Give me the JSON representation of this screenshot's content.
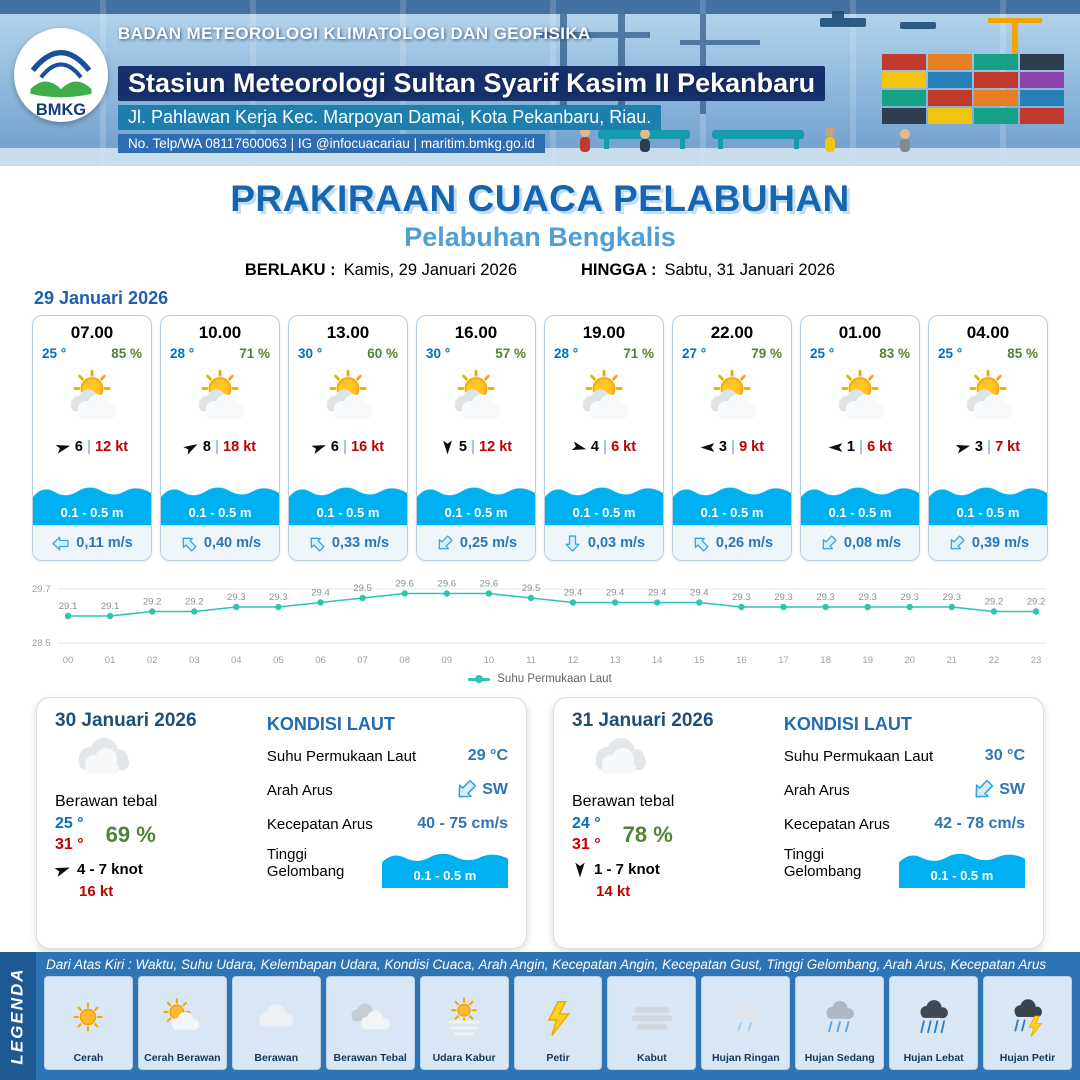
{
  "ui": {
    "sep": "|"
  },
  "palette": {
    "accent_blue": "#1565b0",
    "subtitle_blue": "#4d9fd6",
    "wave_blue": "#00b0f0",
    "temp_blue": "#0070c0",
    "humidity_green": "#538135",
    "gust_red": "#c00000",
    "sst_teal": "#2cc5b2",
    "header_navy": "#15306b",
    "legend_bg": "#2e75b6"
  },
  "header": {
    "logo_text": "BMKG",
    "agency": "BADAN METEOROLOGI KLIMATOLOGI DAN GEOFISIKA",
    "station": "Stasiun Meteorologi Sultan Syarif Kasim II Pekanbaru",
    "address": "Jl. Pahlawan Kerja Kec. Marpoyan Damai, Kota Pekanbaru, Riau.",
    "contact": "No. Telp/WA 08117600063 | IG @infocuacariau | maritim.bmkg.go.id"
  },
  "title": {
    "main": "PRAKIRAAN CUACA PELABUHAN",
    "sub": "Pelabuhan Bengkalis",
    "valid_label": "BERLAKU :",
    "valid_value": "Kamis, 29 Januari 2026",
    "until_label": "HINGGA :",
    "until_value": "Sabtu, 31 Januari 2026"
  },
  "section_date": "29 Januari 2026",
  "hourly": [
    {
      "time": "07.00",
      "temp": "25 °",
      "rh": "85 %",
      "wind": "6",
      "gust": "12 kt",
      "wind_deg": 345,
      "wave": "0.1 - 0.5 m",
      "current": "0,11 m/s",
      "current_deg": 270
    },
    {
      "time": "10.00",
      "temp": "28 °",
      "rh": "71 %",
      "wind": "8",
      "gust": "18 kt",
      "wind_deg": 330,
      "wave": "0.1 - 0.5 m",
      "current": "0,40 m/s",
      "current_deg": 315
    },
    {
      "time": "13.00",
      "temp": "30 °",
      "rh": "60 %",
      "wind": "6",
      "gust": "16 kt",
      "wind_deg": 340,
      "wave": "0.1 - 0.5 m",
      "current": "0,33 m/s",
      "current_deg": 315
    },
    {
      "time": "16.00",
      "temp": "30 °",
      "rh": "57 %",
      "wind": "5",
      "gust": "12 kt",
      "wind_deg": 90,
      "wave": "0.1 - 0.5 m",
      "current": "0,25 m/s",
      "current_deg": 225
    },
    {
      "time": "19.00",
      "temp": "28 °",
      "rh": "71 %",
      "wind": "4",
      "gust": "6 kt",
      "wind_deg": 15,
      "wave": "0.1 - 0.5 m",
      "current": "0,03 m/s",
      "current_deg": 180
    },
    {
      "time": "22.00",
      "temp": "27 °",
      "rh": "79 %",
      "wind": "3",
      "gust": "9 kt",
      "wind_deg": 180,
      "wave": "0.1 - 0.5 m",
      "current": "0,26 m/s",
      "current_deg": 315
    },
    {
      "time": "01.00",
      "temp": "25 °",
      "rh": "83 %",
      "wind": "1",
      "gust": "6 kt",
      "wind_deg": 180,
      "wave": "0.1 - 0.5 m",
      "current": "0,08 m/s",
      "current_deg": 225
    },
    {
      "time": "04.00",
      "temp": "25 °",
      "rh": "85 %",
      "wind": "3",
      "gust": "7 kt",
      "wind_deg": 345,
      "wave": "0.1 - 0.5 m",
      "current": "0,39 m/s",
      "current_deg": 225
    }
  ],
  "chart_data": {
    "type": "line",
    "title": "",
    "series_name": "Suhu Permukaan Laut",
    "x": [
      "00",
      "01",
      "02",
      "03",
      "04",
      "05",
      "06",
      "07",
      "08",
      "09",
      "10",
      "11",
      "12",
      "13",
      "14",
      "15",
      "16",
      "17",
      "18",
      "19",
      "20",
      "21",
      "22",
      "23"
    ],
    "values": [
      29.1,
      29.1,
      29.2,
      29.2,
      29.3,
      29.3,
      29.4,
      29.5,
      29.6,
      29.6,
      29.6,
      29.5,
      29.4,
      29.4,
      29.4,
      29.4,
      29.3,
      29.3,
      29.3,
      29.3,
      29.3,
      29.3,
      29.2,
      29.2
    ],
    "ylim": [
      28.5,
      29.7
    ],
    "line_color": "#2cc5b2",
    "grid": true,
    "legend_position": "bottom"
  },
  "sea_labels": {
    "heading": "KONDISI LAUT",
    "sst": "Suhu Permukaan Laut",
    "arah": "Arah Arus",
    "kecepatan": "Kecepatan Arus",
    "gelombang": "Tinggi Gelombang"
  },
  "daily": [
    {
      "date": "30 Januari 2026",
      "condition": "Berawan tebal",
      "tmin": "25 °",
      "tmax": "31 °",
      "rh": "69 %",
      "wind": "4  - 7 knot",
      "gust": "16 kt",
      "wind_deg": 340,
      "sst": "29 °C",
      "current_dir": "SW",
      "current_deg": 225,
      "current_speed": "40  - 75 cm/s",
      "wave": "0.1 - 0.5 m"
    },
    {
      "date": "31 Januari 2026",
      "condition": "Berawan tebal",
      "tmin": "24 °",
      "tmax": "31 °",
      "rh": "78 %",
      "wind": "1  - 7 knot",
      "gust": "14 kt",
      "wind_deg": 90,
      "sst": "30 °C",
      "current_dir": "SW",
      "current_deg": 225,
      "current_speed": "42  - 78 cm/s",
      "wave": "0.1 - 0.5 m"
    }
  ],
  "legend": {
    "title": "LEGENDA",
    "note": "Dari Atas Kiri : Waktu, Suhu Udara, Kelembapan Udara, Kondisi Cuaca, Arah Angin, Kecepatan Angin, Kecepatan Gust, Tinggi Gelombang, Arah Arus, Kecepatan Arus",
    "items": [
      {
        "label": "Cerah",
        "icon": "sun"
      },
      {
        "label": "Cerah Berawan",
        "icon": "sun-cloud"
      },
      {
        "label": "Berawan",
        "icon": "cloud"
      },
      {
        "label": "Berawan Tebal",
        "icon": "clouds"
      },
      {
        "label": "Udara Kabur",
        "icon": "haze"
      },
      {
        "label": "Petir",
        "icon": "lightning"
      },
      {
        "label": "Kabut",
        "icon": "fog"
      },
      {
        "label": "Hujan Ringan",
        "icon": "rain-light"
      },
      {
        "label": "Hujan Sedang",
        "icon": "rain-medium"
      },
      {
        "label": "Hujan Lebat",
        "icon": "rain-heavy"
      },
      {
        "label": "Hujan Petir",
        "icon": "thunderstorm"
      }
    ]
  }
}
